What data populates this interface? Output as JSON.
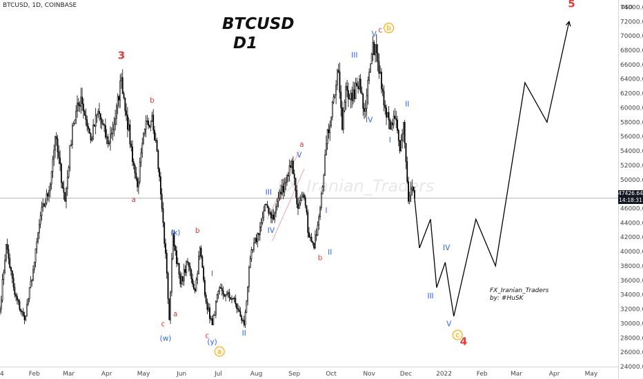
{
  "symbol_line": "BTCUSD, 1D, COINBASE",
  "title_line1": "BTCUSD",
  "title_line2": "D1",
  "watermark": "FX_Iranian_Traders",
  "author_line1": "FX_Iranian_Traders",
  "author_line2": "by: #HuSK",
  "currency": "USD",
  "current_price": "47426.64",
  "countdown": "14:18:31",
  "colors": {
    "up": "#ffffff",
    "down": "#000000",
    "outline": "#000000",
    "wave_red": "#e53935",
    "wave_blue": "#2962ff",
    "circle": "#f4a300",
    "price_line": "#9e9e9e"
  },
  "chart_data": {
    "type": "candlestick",
    "timeframe": "1D",
    "ylim": [
      24000,
      75000
    ],
    "y_ticks": [
      24000,
      26000,
      28000,
      30000,
      32000,
      34000,
      36000,
      38000,
      40000,
      42000,
      44000,
      46000,
      48000,
      50000,
      52000,
      54000,
      56000,
      58000,
      60000,
      62000,
      64000,
      66000,
      68000,
      70000,
      72000,
      74000
    ],
    "y_tick_labels": [
      "24000.00",
      "26000.00",
      "28000.00",
      "30000.00",
      "32000.00",
      "34000.00",
      "36000.00",
      "38000.00",
      "40000.00",
      "42000.00",
      "44000.00",
      "46000.00",
      "48000.00",
      "50000.00",
      "52000.00",
      "54000.00",
      "56000.00",
      "58000.00",
      "60000.00",
      "62000.00",
      "64000.00",
      "66000.00",
      "68000.00",
      "70000.00",
      "72000.00",
      "74000.00"
    ],
    "x_ticks": [
      {
        "label": "4",
        "day": 0
      },
      {
        "label": "Feb",
        "day": 28
      },
      {
        "label": "Mar",
        "day": 56
      },
      {
        "label": "Apr",
        "day": 87
      },
      {
        "label": "May",
        "day": 117
      },
      {
        "label": "Jun",
        "day": 148
      },
      {
        "label": "Jul",
        "day": 178
      },
      {
        "label": "Aug",
        "day": 209
      },
      {
        "label": "Sep",
        "day": 240
      },
      {
        "label": "Oct",
        "day": 270
      },
      {
        "label": "Nov",
        "day": 301
      },
      {
        "label": "Dec",
        "day": 331
      },
      {
        "label": "2022",
        "day": 362
      },
      {
        "label": "Feb",
        "day": 393
      },
      {
        "label": "Mar",
        "day": 421
      },
      {
        "label": "Apr",
        "day": 452
      },
      {
        "label": "May",
        "day": 482
      }
    ],
    "x_range_days": [
      0,
      504
    ],
    "price_anchors": [
      [
        0,
        32000
      ],
      [
        5,
        41000
      ],
      [
        12,
        34000
      ],
      [
        20,
        30500
      ],
      [
        28,
        38500
      ],
      [
        33,
        45000
      ],
      [
        40,
        48500
      ],
      [
        45,
        56000
      ],
      [
        53,
        47000
      ],
      [
        59,
        57500
      ],
      [
        66,
        61500
      ],
      [
        74,
        55500
      ],
      [
        80,
        59500
      ],
      [
        88,
        55000
      ],
      [
        94,
        58500
      ],
      [
        99,
        64200
      ],
      [
        103,
        59000
      ],
      [
        109,
        52000
      ],
      [
        112,
        49000
      ],
      [
        118,
        57000
      ],
      [
        124,
        59000
      ],
      [
        128,
        54000
      ],
      [
        132,
        46000
      ],
      [
        136,
        37000
      ],
      [
        138,
        30500
      ],
      [
        141,
        42500
      ],
      [
        147,
        35500
      ],
      [
        153,
        38500
      ],
      [
        159,
        34500
      ],
      [
        163,
        40500
      ],
      [
        168,
        33000
      ],
      [
        173,
        29800
      ],
      [
        178,
        34500
      ],
      [
        184,
        34000
      ],
      [
        190,
        33500
      ],
      [
        196,
        31000
      ],
      [
        199,
        29800
      ],
      [
        204,
        39000
      ],
      [
        213,
        44000
      ],
      [
        217,
        46500
      ],
      [
        223,
        44500
      ],
      [
        226,
        47000
      ],
      [
        232,
        49500
      ],
      [
        238,
        52600
      ],
      [
        243,
        46000
      ],
      [
        248,
        47500
      ],
      [
        252,
        42000
      ],
      [
        256,
        40500
      ],
      [
        262,
        48000
      ],
      [
        266,
        55000
      ],
      [
        272,
        61500
      ],
      [
        276,
        65000
      ],
      [
        279,
        57000
      ],
      [
        282,
        63000
      ],
      [
        287,
        61000
      ],
      [
        293,
        64000
      ],
      [
        297,
        59500
      ],
      [
        303,
        67500
      ],
      [
        306,
        68800
      ],
      [
        310,
        65000
      ],
      [
        314,
        60000
      ],
      [
        318,
        57000
      ],
      [
        322,
        58500
      ],
      [
        326,
        54000
      ],
      [
        329,
        58000
      ],
      [
        333,
        47000
      ],
      [
        336,
        49000
      ],
      [
        338,
        47426
      ]
    ],
    "projection": [
      [
        338,
        47426
      ],
      [
        342,
        40500
      ],
      [
        351,
        44500
      ],
      [
        356,
        35000
      ],
      [
        363,
        38500
      ],
      [
        370,
        31000
      ],
      [
        388,
        44500
      ],
      [
        404,
        38000
      ],
      [
        428,
        63500
      ],
      [
        446,
        58000
      ],
      [
        464,
        72000
      ]
    ],
    "channel": [
      [
        218,
        44500
      ],
      [
        244,
        54000
      ],
      [
        222,
        41500
      ],
      [
        248,
        51500
      ]
    ],
    "wave_labels": [
      {
        "text": "3",
        "day": 99,
        "price": 66800,
        "color": "red",
        "size": "big"
      },
      {
        "text": "b",
        "day": 124,
        "price": 60700,
        "color": "red"
      },
      {
        "text": "a",
        "day": 109,
        "price": 46900,
        "color": "red"
      },
      {
        "text": "c",
        "day": 133,
        "price": 29600,
        "color": "red"
      },
      {
        "text": "a",
        "day": 143,
        "price": 31000,
        "color": "red"
      },
      {
        "text": "(x)",
        "day": 143,
        "price": 42300,
        "color": "blue"
      },
      {
        "text": "(w)",
        "day": 135,
        "price": 27600,
        "color": "blue"
      },
      {
        "text": "b",
        "day": 161,
        "price": 42600,
        "color": "red"
      },
      {
        "text": "c",
        "day": 169,
        "price": 28000,
        "color": "red"
      },
      {
        "text": "(y)",
        "day": 173,
        "price": 27100,
        "color": "blue"
      },
      {
        "text": "a",
        "day": 179,
        "price": 26100,
        "color": "circle"
      },
      {
        "text": "I",
        "day": 173,
        "price": 36600,
        "color": "blue"
      },
      {
        "text": "II",
        "day": 199,
        "price": 28300,
        "color": "blue"
      },
      {
        "text": "III",
        "day": 219,
        "price": 47900,
        "color": "blue"
      },
      {
        "text": "IV",
        "day": 221,
        "price": 42600,
        "color": "blue"
      },
      {
        "text": "V",
        "day": 244,
        "price": 53100,
        "color": "blue"
      },
      {
        "text": "a",
        "day": 246,
        "price": 54600,
        "color": "red"
      },
      {
        "text": "I",
        "day": 266,
        "price": 45400,
        "color": "blue"
      },
      {
        "text": "b",
        "day": 261,
        "price": 38800,
        "color": "red"
      },
      {
        "text": "II",
        "day": 269,
        "price": 39600,
        "color": "blue"
      },
      {
        "text": "III",
        "day": 289,
        "price": 67000,
        "color": "blue"
      },
      {
        "text": "IV",
        "day": 301,
        "price": 58000,
        "color": "blue"
      },
      {
        "text": "V",
        "day": 305,
        "price": 69900,
        "color": "blue"
      },
      {
        "text": "c",
        "day": 310,
        "price": 70500,
        "color": "red"
      },
      {
        "text": "b",
        "day": 317,
        "price": 71100,
        "color": "circle"
      },
      {
        "text": "II",
        "day": 332,
        "price": 60200,
        "color": "blue"
      },
      {
        "text": "I",
        "day": 318,
        "price": 55200,
        "color": "blue"
      },
      {
        "text": "IV",
        "day": 364,
        "price": 40200,
        "color": "blue"
      },
      {
        "text": "III",
        "day": 351,
        "price": 33500,
        "color": "blue"
      },
      {
        "text": "V",
        "day": 366,
        "price": 29600,
        "color": "blue"
      },
      {
        "text": "c",
        "day": 373,
        "price": 28400,
        "color": "circle"
      },
      {
        "text": "4",
        "day": 378,
        "price": 27000,
        "color": "red",
        "size": "big"
      },
      {
        "text": "5",
        "day": 466,
        "price": 74000,
        "color": "red",
        "size": "big"
      }
    ]
  }
}
